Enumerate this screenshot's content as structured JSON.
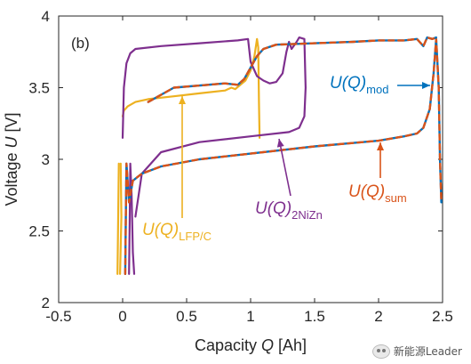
{
  "chart_data": {
    "type": "line",
    "panel_label": "(b)",
    "xlabel": "Capacity Q [Ah]",
    "ylabel": "Voltage U [V]",
    "xlim": [
      -0.5,
      2.5
    ],
    "ylim": [
      2.0,
      4.0
    ],
    "xticks": [
      "-0.5",
      "0",
      "0.5",
      "1",
      "1.5",
      "2",
      "2.5"
    ],
    "yticks": [
      "2",
      "2.5",
      "3",
      "3.5",
      "4"
    ],
    "grid": false,
    "series": [
      {
        "name": "U(Q)_LFP/C",
        "color": "#EDB120",
        "points_charge": [
          [
            -0.04,
            2.2
          ],
          [
            -0.035,
            2.6
          ],
          [
            -0.03,
            2.97
          ]
        ],
        "points_discharge_end": [
          [
            -0.015,
            2.97
          ],
          [
            -0.01,
            2.6
          ],
          [
            -0.02,
            2.2
          ]
        ],
        "points_plateau": [
          [
            0.0,
            3.3
          ],
          [
            0.01,
            3.34
          ],
          [
            0.04,
            3.37
          ],
          [
            0.1,
            3.4
          ],
          [
            0.2,
            3.42
          ],
          [
            0.4,
            3.44
          ],
          [
            0.6,
            3.46
          ],
          [
            0.8,
            3.48
          ],
          [
            0.85,
            3.5
          ],
          [
            0.88,
            3.49
          ],
          [
            0.92,
            3.52
          ],
          [
            0.96,
            3.55
          ],
          [
            1.0,
            3.62
          ],
          [
            1.03,
            3.72
          ],
          [
            1.05,
            3.84
          ],
          [
            1.06,
            3.78
          ],
          [
            1.065,
            3.4
          ],
          [
            1.07,
            3.15
          ]
        ]
      },
      {
        "name": "U(Q)_2NiZn",
        "color": "#7E2F8E",
        "points": [
          [
            0.05,
            2.2
          ],
          [
            0.055,
            2.55
          ],
          [
            0.06,
            2.97
          ],
          [
            0.07,
            2.75
          ],
          [
            0.08,
            2.35
          ],
          [
            0.09,
            2.2
          ]
        ],
        "points_upper": [
          [
            0.0,
            3.15
          ],
          [
            0.01,
            3.5
          ],
          [
            0.03,
            3.67
          ],
          [
            0.06,
            3.74
          ],
          [
            0.1,
            3.77
          ],
          [
            0.3,
            3.79
          ],
          [
            0.6,
            3.81
          ],
          [
            0.9,
            3.83
          ],
          [
            0.98,
            3.84
          ],
          [
            1.0,
            3.68
          ],
          [
            1.05,
            3.58
          ],
          [
            1.1,
            3.55
          ],
          [
            1.15,
            3.53
          ],
          [
            1.2,
            3.54
          ],
          [
            1.25,
            3.6
          ],
          [
            1.28,
            3.75
          ],
          [
            1.3,
            3.82
          ],
          [
            1.32,
            3.77
          ],
          [
            1.36,
            3.82
          ],
          [
            1.38,
            3.85
          ],
          [
            1.42,
            3.84
          ],
          [
            1.43,
            3.5
          ],
          [
            1.42,
            3.3
          ],
          [
            1.38,
            3.22
          ],
          [
            1.3,
            3.19
          ],
          [
            1.0,
            3.16
          ],
          [
            0.6,
            3.12
          ],
          [
            0.3,
            3.05
          ],
          [
            0.15,
            2.9
          ],
          [
            0.1,
            2.6
          ]
        ]
      },
      {
        "name": "U(Q)_mod",
        "color": "#0072BD",
        "points": [
          [
            0.02,
            2.2
          ],
          [
            0.025,
            2.6
          ],
          [
            0.03,
            2.97
          ],
          [
            0.05,
            2.7
          ],
          [
            0.08,
            2.85
          ],
          [
            0.15,
            2.9
          ],
          [
            0.3,
            2.95
          ],
          [
            0.6,
            3.0
          ],
          [
            1.0,
            3.04
          ],
          [
            1.5,
            3.09
          ],
          [
            2.0,
            3.13
          ],
          [
            2.2,
            3.16
          ],
          [
            2.3,
            3.18
          ],
          [
            2.35,
            3.22
          ],
          [
            2.4,
            3.35
          ],
          [
            2.43,
            3.6
          ],
          [
            2.45,
            3.84
          ],
          [
            2.47,
            3.5
          ],
          [
            2.48,
            3.0
          ],
          [
            2.49,
            2.7
          ]
        ],
        "points_upper": [
          [
            0.2,
            3.4
          ],
          [
            0.4,
            3.5
          ],
          [
            0.8,
            3.53
          ],
          [
            0.9,
            3.52
          ],
          [
            0.95,
            3.56
          ],
          [
            1.0,
            3.64
          ],
          [
            1.05,
            3.72
          ],
          [
            1.1,
            3.77
          ],
          [
            1.2,
            3.8
          ],
          [
            1.5,
            3.81
          ],
          [
            1.8,
            3.82
          ],
          [
            2.0,
            3.83
          ],
          [
            2.2,
            3.83
          ],
          [
            2.3,
            3.84
          ],
          [
            2.35,
            3.79
          ],
          [
            2.38,
            3.85
          ],
          [
            2.42,
            3.84
          ],
          [
            2.45,
            3.85
          ]
        ]
      },
      {
        "name": "U(Q)_sum",
        "color": "#D95319"
      }
    ],
    "annotations": [
      {
        "base": "U(Q)",
        "sub": "LFP/C",
        "color": "#EDB120"
      },
      {
        "base": "U(Q)",
        "sub": "2NiZn",
        "color": "#7E2F8E"
      },
      {
        "base": "U(Q)",
        "sub": "sum",
        "color": "#D95319"
      },
      {
        "base": "U(Q)",
        "sub": "mod",
        "color": "#0072BD"
      }
    ]
  },
  "watermark": "新能源Leader"
}
